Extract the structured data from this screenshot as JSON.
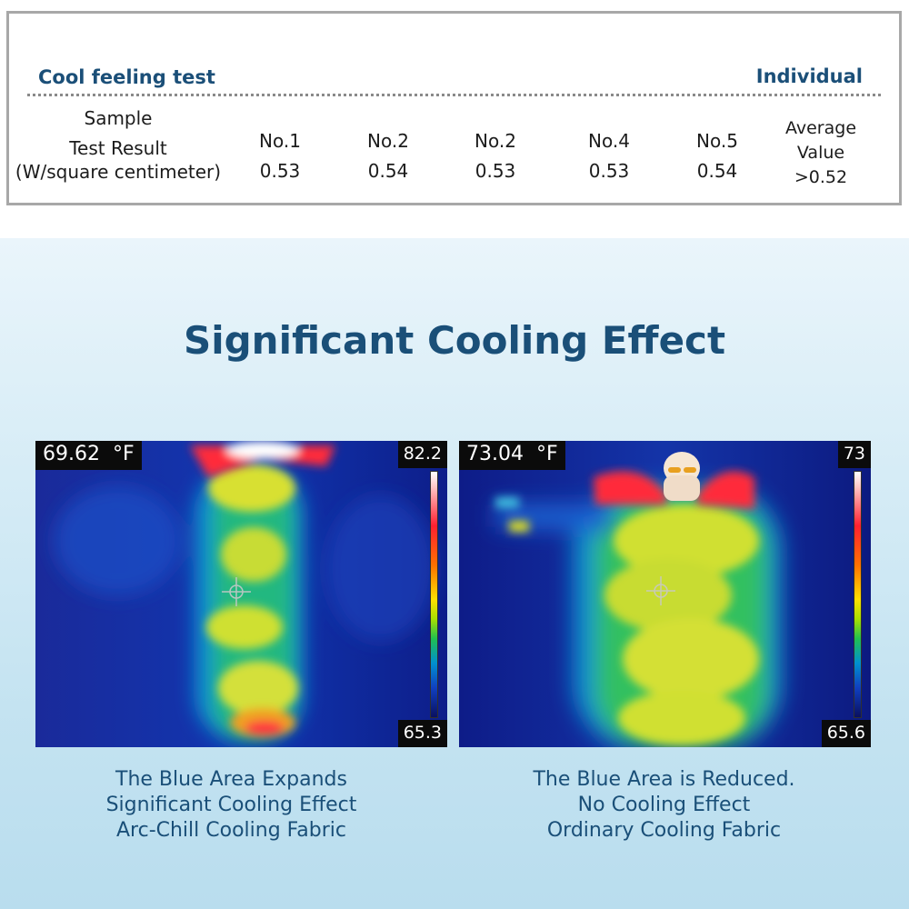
{
  "test_table": {
    "title": "Cool feeling test",
    "individual_label": "Individual",
    "row_label_lines": [
      "Sample",
      "Test Result",
      "(W/square centimeter)"
    ],
    "samples": [
      {
        "label": "No.1",
        "value": "0.53"
      },
      {
        "label": "No.2",
        "value": "0.54"
      },
      {
        "label": "No.2",
        "value": "0.53"
      },
      {
        "label": "No.4",
        "value": "0.53"
      },
      {
        "label": "No.5",
        "value": "0.54"
      }
    ],
    "average_lines": [
      "Average",
      "Value",
      ">0.52"
    ]
  },
  "headline": "Significant Cooling Effect",
  "images": [
    {
      "readout": "69.62",
      "unit": "°F",
      "scale_max": "82.2",
      "scale_min": "65.3",
      "caption_lines": [
        "The Blue Area Expands",
        "Significant Cooling Effect",
        "Arc-Chill Cooling Fabric"
      ]
    },
    {
      "readout": "73.04",
      "unit": "°F",
      "scale_max": "73",
      "scale_min": "65.6",
      "caption_lines": [
        "The Blue Area is Reduced.",
        "No Cooling Effect",
        "Ordinary Cooling Fabric"
      ]
    }
  ],
  "colors": {
    "heading": "#1a4f78",
    "thermal_cold": "#0a1a7a",
    "thermal_warm": "#d8e830",
    "thermal_hot": "#ff2030"
  }
}
